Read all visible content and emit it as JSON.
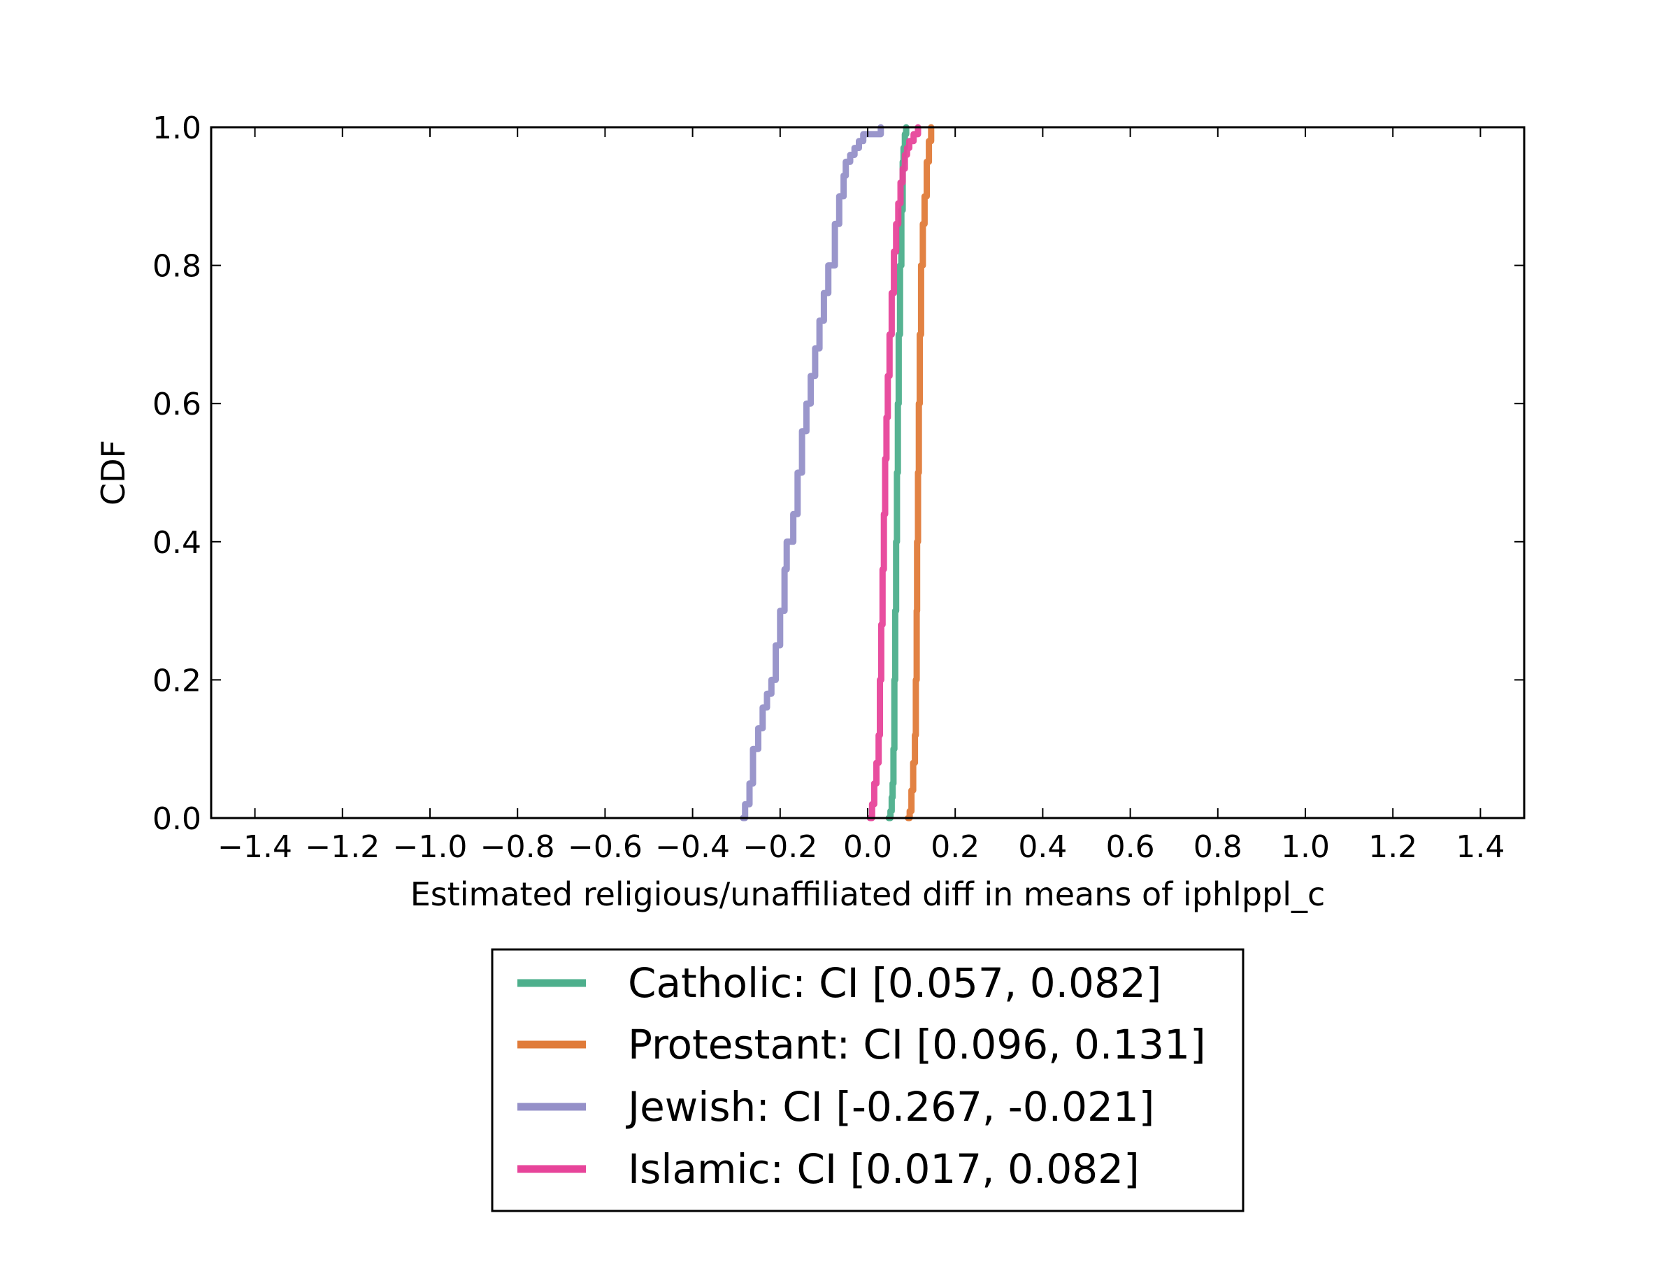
{
  "chart_data": {
    "type": "line",
    "title": "",
    "xlabel": "Estimated religious/unaffiliated diff in means of iphlppl_c",
    "ylabel": "CDF",
    "xlim": [
      -1.5,
      1.5
    ],
    "ylim": [
      0.0,
      1.0
    ],
    "xticks": [
      -1.4,
      -1.2,
      -1.0,
      -0.8,
      -0.6,
      -0.4,
      -0.2,
      0.0,
      0.2,
      0.4,
      0.6,
      0.8,
      1.0,
      1.2,
      1.4
    ],
    "xtick_labels": [
      "−1.4",
      "−1.2",
      "−1.0",
      "−0.8",
      "−0.6",
      "−0.4",
      "−0.2",
      "0.0",
      "0.2",
      "0.4",
      "0.6",
      "0.8",
      "1.0",
      "1.2",
      "1.4"
    ],
    "yticks": [
      0.0,
      0.2,
      0.4,
      0.6,
      0.8,
      1.0
    ],
    "ytick_labels": [
      "0.0",
      "0.2",
      "0.4",
      "0.6",
      "0.8",
      "1.0"
    ],
    "grid": false,
    "legend_position": "below the plot, centered",
    "series": [
      {
        "name": "Catholic: CI [0.057, 0.082]",
        "color": "#4daf8c",
        "x": [
          0.048,
          0.052,
          0.055,
          0.057,
          0.059,
          0.061,
          0.063,
          0.065,
          0.067,
          0.069,
          0.071,
          0.074,
          0.077,
          0.08,
          0.082,
          0.085,
          0.088
        ],
        "y": [
          0.0,
          0.01,
          0.03,
          0.05,
          0.1,
          0.2,
          0.3,
          0.4,
          0.5,
          0.6,
          0.7,
          0.8,
          0.88,
          0.95,
          0.97,
          0.99,
          1.0
        ]
      },
      {
        "name": "Protestant: CI [0.096, 0.131]",
        "color": "#e07b39",
        "x": [
          0.092,
          0.096,
          0.1,
          0.104,
          0.108,
          0.11,
          0.112,
          0.113,
          0.115,
          0.117,
          0.119,
          0.122,
          0.126,
          0.13,
          0.135,
          0.14,
          0.145
        ],
        "y": [
          0.0,
          0.01,
          0.04,
          0.08,
          0.12,
          0.2,
          0.3,
          0.4,
          0.5,
          0.6,
          0.7,
          0.8,
          0.86,
          0.9,
          0.95,
          0.98,
          1.0
        ]
      },
      {
        "name": "Jewish: CI [-0.267, -0.021]",
        "color": "#9590c8",
        "x": [
          -0.285,
          -0.28,
          -0.27,
          -0.262,
          -0.25,
          -0.24,
          -0.23,
          -0.22,
          -0.21,
          -0.2,
          -0.19,
          -0.185,
          -0.17,
          -0.16,
          -0.15,
          -0.14,
          -0.13,
          -0.12,
          -0.11,
          -0.1,
          -0.09,
          -0.075,
          -0.065,
          -0.055,
          -0.05,
          -0.04,
          -0.03,
          -0.02,
          -0.01,
          0.01,
          0.03
        ],
        "y": [
          0.0,
          0.02,
          0.05,
          0.1,
          0.13,
          0.16,
          0.18,
          0.2,
          0.25,
          0.3,
          0.36,
          0.4,
          0.44,
          0.5,
          0.56,
          0.6,
          0.64,
          0.68,
          0.72,
          0.76,
          0.8,
          0.86,
          0.9,
          0.93,
          0.95,
          0.96,
          0.97,
          0.98,
          0.99,
          0.99,
          1.0
        ]
      },
      {
        "name": "Islamic: CI [0.017, 0.082]",
        "color": "#e7449a",
        "x": [
          0.005,
          0.01,
          0.015,
          0.02,
          0.025,
          0.028,
          0.031,
          0.034,
          0.037,
          0.04,
          0.043,
          0.046,
          0.05,
          0.055,
          0.06,
          0.065,
          0.07,
          0.075,
          0.08,
          0.085,
          0.09,
          0.095,
          0.105,
          0.115
        ],
        "y": [
          0.0,
          0.02,
          0.05,
          0.08,
          0.12,
          0.2,
          0.28,
          0.36,
          0.44,
          0.52,
          0.58,
          0.64,
          0.7,
          0.76,
          0.82,
          0.86,
          0.89,
          0.92,
          0.94,
          0.96,
          0.97,
          0.98,
          0.99,
          1.0
        ]
      }
    ]
  }
}
